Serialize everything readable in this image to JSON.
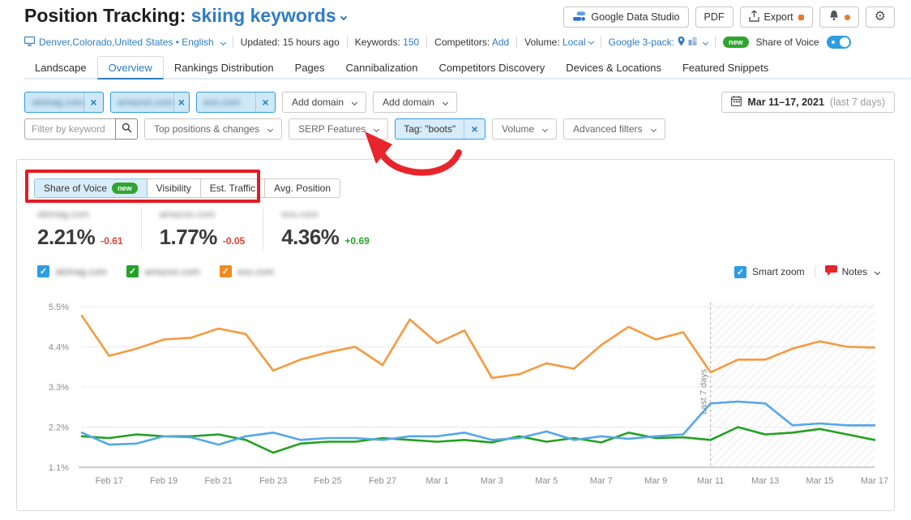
{
  "header": {
    "title": "Position Tracking:",
    "project": "skiing keywords",
    "buttons": {
      "gds": "Google Data Studio",
      "pdf": "PDF",
      "export": "Export"
    }
  },
  "subheader": {
    "location": "Denver,Colorado,United States • English",
    "updated_label": "Updated:",
    "updated_value": "15 hours ago",
    "keywords_label": "Keywords:",
    "keywords_value": "150",
    "competitors_label": "Competitors:",
    "competitors_action": "Add",
    "volume_label": "Volume:",
    "volume_value": "Local",
    "google_pack_label": "Google 3-pack:",
    "new_badge": "new",
    "share_of_voice": "Share of Voice"
  },
  "tabs": [
    "Landscape",
    "Overview",
    "Rankings Distribution",
    "Pages",
    "Cannibalization",
    "Competitors Discovery",
    "Devices & Locations",
    "Featured Snippets"
  ],
  "active_tab": "Overview",
  "filters": {
    "domain_chips": [
      {
        "text": "skimag.com",
        "blurred": true
      },
      {
        "text": "amazon.com",
        "blurred": true
      },
      {
        "text": "evo.com",
        "blurred": true
      }
    ],
    "add_domain": "Add domain",
    "keyword_placeholder": "Filter by keyword",
    "dropdown_positions": "Top positions & changes",
    "dropdown_serp": "SERP Features",
    "tag_chip": "Tag: \"boots\"",
    "dropdown_volume": "Volume",
    "dropdown_advanced": "Advanced filters",
    "date_range": "Mar 11–17, 2021",
    "date_range_note": "(last 7 days)"
  },
  "metric_tabs": [
    {
      "label": "Share of Voice",
      "badge": "new",
      "active": true
    },
    {
      "label": "Visibility",
      "active": false
    },
    {
      "label": "Est. Traffic",
      "active": false
    },
    {
      "label": "Avg. Position",
      "active": false
    }
  ],
  "metrics": [
    {
      "domain": "skimag.com",
      "blurred": true,
      "value": "2.21%",
      "delta": "-0.61",
      "delta_color": "#e0402e"
    },
    {
      "domain": "amazon.com",
      "blurred": true,
      "value": "1.77%",
      "delta": "-0.05",
      "delta_color": "#e0402e"
    },
    {
      "domain": "evo.com",
      "blurred": true,
      "value": "4.36%",
      "delta": "+0.69",
      "delta_color": "#2aa12a"
    }
  ],
  "legend": [
    {
      "label": "skimag.com",
      "blurred": true,
      "color": "#2e9ce3"
    },
    {
      "label": "amazon.com",
      "blurred": true,
      "color": "#23a228"
    },
    {
      "label": "evo.com",
      "blurred": true,
      "color": "#f28a1f"
    }
  ],
  "chart_controls": {
    "smart_zoom": "Smart zoom",
    "notes": "Notes"
  },
  "annotations": {
    "color": "#e8252b"
  },
  "chart_data": {
    "type": "line",
    "x": [
      "Feb 16",
      "Feb 17",
      "Feb 18",
      "Feb 19",
      "Feb 20",
      "Feb 21",
      "Feb 22",
      "Feb 23",
      "Feb 24",
      "Feb 25",
      "Feb 26",
      "Feb 27",
      "Feb 28",
      "Mar 1",
      "Mar 2",
      "Mar 3",
      "Mar 4",
      "Mar 5",
      "Mar 6",
      "Mar 7",
      "Mar 8",
      "Mar 9",
      "Mar 10",
      "Mar 11",
      "Mar 12",
      "Mar 13",
      "Mar 14",
      "Mar 15",
      "Mar 16",
      "Mar 17"
    ],
    "x_tick_indices": [
      1,
      3,
      5,
      7,
      9,
      11,
      13,
      15,
      17,
      19,
      21,
      23,
      25,
      27,
      29
    ],
    "yticks": [
      "5.5%",
      "4.4%",
      "3.3%",
      "2.2%",
      "1.1%"
    ],
    "ytick_values": [
      5.5,
      4.4,
      3.3,
      2.2,
      1.1
    ],
    "ylim": [
      1.1,
      5.8
    ],
    "unit": "%",
    "series": [
      {
        "name": "evo.com (blurred)",
        "color": "#f7993f",
        "values": [
          5.25,
          4.15,
          4.35,
          4.6,
          4.65,
          4.9,
          4.75,
          3.75,
          4.05,
          4.25,
          4.4,
          3.9,
          5.15,
          4.5,
          4.85,
          3.55,
          3.65,
          3.95,
          3.8,
          4.45,
          4.95,
          4.6,
          4.8,
          3.7,
          4.05,
          4.05,
          4.35,
          4.55,
          4.4,
          4.38
        ]
      },
      {
        "name": "amazon.com (blurred)",
        "color": "#21a121",
        "values": [
          1.95,
          1.9,
          2.0,
          1.95,
          1.95,
          2.0,
          1.85,
          1.5,
          1.75,
          1.8,
          1.8,
          1.9,
          1.85,
          1.8,
          1.85,
          1.78,
          1.95,
          1.8,
          1.9,
          1.78,
          2.05,
          1.9,
          1.92,
          1.85,
          2.2,
          2.0,
          2.05,
          2.15,
          2.0,
          1.85
        ]
      },
      {
        "name": "skimag.com (blurred)",
        "color": "#55a7e8",
        "values": [
          2.05,
          1.72,
          1.75,
          1.95,
          1.92,
          1.72,
          1.95,
          2.05,
          1.85,
          1.9,
          1.9,
          1.85,
          1.95,
          1.95,
          2.05,
          1.85,
          1.9,
          2.08,
          1.85,
          1.95,
          1.88,
          1.95,
          2.0,
          2.85,
          2.9,
          2.85,
          2.25,
          2.3,
          2.25,
          2.25
        ]
      }
    ],
    "highlight": {
      "label": "Last 7 days",
      "start": "Mar 11",
      "start_index": 23
    }
  }
}
